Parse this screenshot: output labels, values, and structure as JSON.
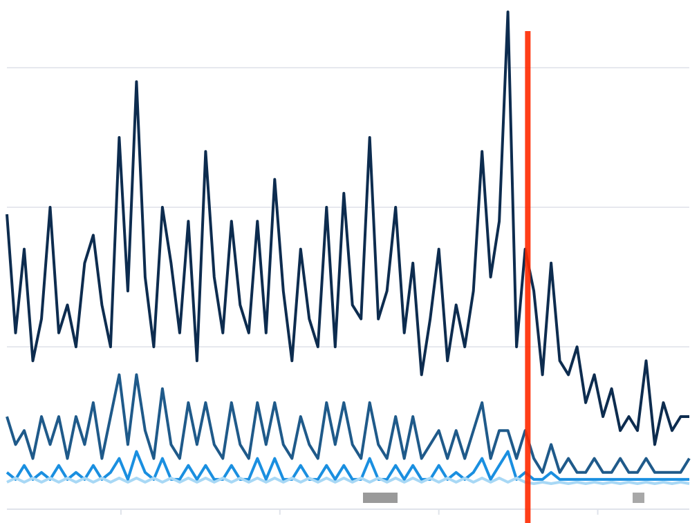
{
  "chart_data": {
    "type": "line",
    "xlim": [
      0,
      79
    ],
    "xticks": [
      13.2,
      31.6,
      50,
      68.4
    ],
    "ylim": [
      0,
      3.45
    ],
    "yticks": [
      1,
      2,
      3
    ],
    "grid": true,
    "marker_x": 60.3,
    "marker_color": "#ff2a00",
    "series": [
      {
        "color": "#0d2c4f",
        "values": [
          1.95,
          1.1,
          1.7,
          0.9,
          1.2,
          2.0,
          1.1,
          1.3,
          1.0,
          1.6,
          1.8,
          1.3,
          1.0,
          2.5,
          1.4,
          2.9,
          1.5,
          1.0,
          2.0,
          1.6,
          1.1,
          1.9,
          0.9,
          2.4,
          1.5,
          1.1,
          1.9,
          1.3,
          1.1,
          1.9,
          1.1,
          2.2,
          1.4,
          0.9,
          1.7,
          1.2,
          1.0,
          2.0,
          1.0,
          2.1,
          1.3,
          1.2,
          2.5,
          1.2,
          1.4,
          2.0,
          1.1,
          1.6,
          0.8,
          1.2,
          1.7,
          0.9,
          1.3,
          1.0,
          1.4,
          2.4,
          1.5,
          1.9,
          3.4,
          1.0,
          1.7,
          1.4,
          0.8,
          1.6,
          0.9,
          0.8,
          1.0,
          0.6,
          0.8,
          0.5,
          0.7,
          0.4,
          0.5,
          0.4,
          0.9,
          0.3,
          0.6,
          0.4,
          0.5,
          0.5
        ]
      },
      {
        "color": "#1f5a8a",
        "values": [
          0.5,
          0.3,
          0.4,
          0.2,
          0.5,
          0.3,
          0.5,
          0.2,
          0.5,
          0.3,
          0.6,
          0.2,
          0.5,
          0.8,
          0.3,
          0.8,
          0.4,
          0.2,
          0.7,
          0.3,
          0.2,
          0.6,
          0.3,
          0.6,
          0.3,
          0.2,
          0.6,
          0.3,
          0.2,
          0.6,
          0.3,
          0.6,
          0.3,
          0.2,
          0.5,
          0.3,
          0.2,
          0.6,
          0.3,
          0.6,
          0.3,
          0.2,
          0.6,
          0.3,
          0.2,
          0.5,
          0.2,
          0.5,
          0.2,
          0.3,
          0.4,
          0.2,
          0.4,
          0.2,
          0.4,
          0.6,
          0.2,
          0.4,
          0.4,
          0.2,
          0.4,
          0.2,
          0.1,
          0.3,
          0.1,
          0.2,
          0.1,
          0.1,
          0.2,
          0.1,
          0.1,
          0.2,
          0.1,
          0.1,
          0.2,
          0.1,
          0.1,
          0.1,
          0.1,
          0.2
        ]
      },
      {
        "color": "#1a8fe0",
        "values": [
          0.1,
          0.05,
          0.15,
          0.05,
          0.1,
          0.05,
          0.15,
          0.05,
          0.1,
          0.05,
          0.15,
          0.05,
          0.1,
          0.2,
          0.05,
          0.25,
          0.1,
          0.05,
          0.2,
          0.05,
          0.05,
          0.15,
          0.05,
          0.15,
          0.05,
          0.05,
          0.15,
          0.05,
          0.05,
          0.2,
          0.05,
          0.2,
          0.05,
          0.05,
          0.15,
          0.05,
          0.05,
          0.15,
          0.05,
          0.15,
          0.05,
          0.05,
          0.2,
          0.05,
          0.05,
          0.15,
          0.05,
          0.15,
          0.05,
          0.05,
          0.15,
          0.05,
          0.1,
          0.05,
          0.1,
          0.2,
          0.05,
          0.15,
          0.25,
          0.05,
          0.1,
          0.05,
          0.05,
          0.1,
          0.05,
          0.05,
          0.05,
          0.05,
          0.05,
          0.05,
          0.05,
          0.05,
          0.05,
          0.05,
          0.05,
          0.05,
          0.05,
          0.05,
          0.05,
          0.05
        ]
      },
      {
        "color": "#a8d8f5",
        "values": [
          0.03,
          0.06,
          0.03,
          0.06,
          0.03,
          0.06,
          0.03,
          0.06,
          0.03,
          0.06,
          0.03,
          0.06,
          0.03,
          0.06,
          0.03,
          0.06,
          0.03,
          0.06,
          0.03,
          0.06,
          0.03,
          0.06,
          0.03,
          0.06,
          0.03,
          0.06,
          0.03,
          0.06,
          0.03,
          0.06,
          0.03,
          0.06,
          0.03,
          0.06,
          0.03,
          0.06,
          0.03,
          0.06,
          0.03,
          0.06,
          0.03,
          0.06,
          0.03,
          0.06,
          0.03,
          0.06,
          0.03,
          0.06,
          0.03,
          0.06,
          0.03,
          0.06,
          0.03,
          0.06,
          0.03,
          0.06,
          0.03,
          0.06,
          0.03,
          0.06,
          0.03,
          0.02,
          0.03,
          0.02,
          0.03,
          0.02,
          0.03,
          0.02,
          0.03,
          0.02,
          0.03,
          0.02,
          0.03,
          0.02,
          0.03,
          0.02,
          0.03,
          0.02,
          0.03,
          0.02
        ]
      }
    ]
  }
}
